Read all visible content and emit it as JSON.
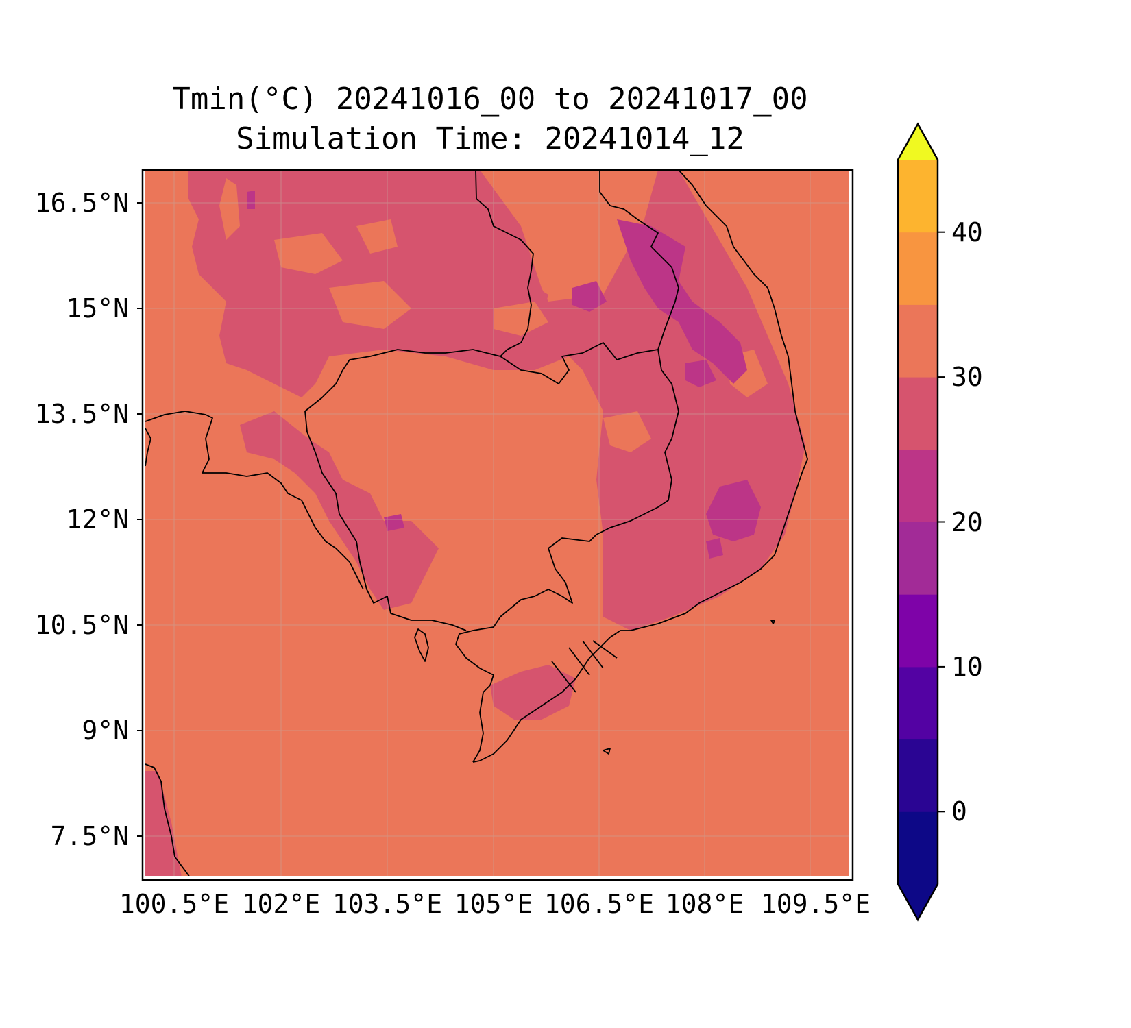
{
  "title": {
    "line1": "Tmin(°C) 20241016_00 to 20241017_00",
    "line2": "Simulation Time: 20241014_12"
  },
  "map": {
    "lat_ticks": [
      "16.5°N",
      "15°N",
      "13.5°N",
      "12°N",
      "10.5°N",
      "9°N",
      "7.5°N"
    ],
    "lon_ticks": [
      "100.5°E",
      "102°E",
      "103.5°E",
      "105°E",
      "106.5°E",
      "108°E",
      "109.5°E"
    ],
    "background_color": "#eb7659",
    "land_cool_color": "#d6546e",
    "highland_color": "#bc3587",
    "coastline_color": "#000000"
  },
  "colorbar": {
    "tick_labels": [
      "0",
      "10",
      "20",
      "30",
      "40"
    ],
    "levels": [
      -5,
      0,
      5,
      10,
      15,
      20,
      25,
      30,
      35,
      40,
      45
    ],
    "colors": [
      "#0d0887",
      "#2a0593",
      "#5302a3",
      "#7e03a8",
      "#a22b97",
      "#bc3587",
      "#d6546e",
      "#eb7659",
      "#f89540",
      "#fdb42f",
      "#f3e31f"
    ],
    "extend": "both",
    "under_color": "#0d0887",
    "over_color": "#f0f921"
  }
}
